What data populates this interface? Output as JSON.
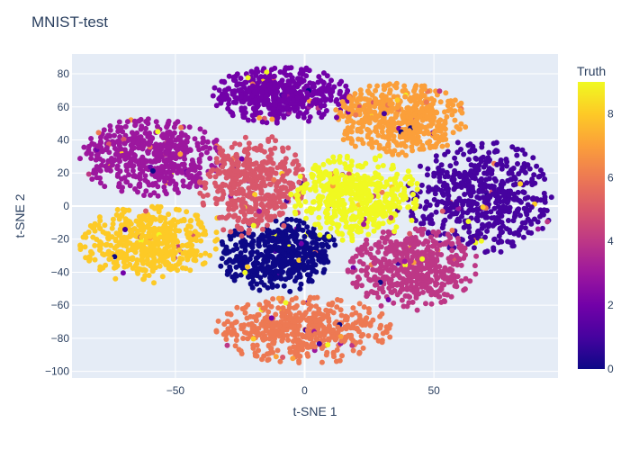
{
  "chart_data": {
    "type": "scatter",
    "title": "MNIST-test",
    "xlabel": "t-SNE 1",
    "ylabel": "t-SNE 2",
    "xlim": [
      -90,
      98
    ],
    "ylim": [
      -104,
      92
    ],
    "grid": true,
    "x_ticks": [
      -50,
      0,
      50
    ],
    "x_tick_labels": [
      "−50",
      "0",
      "50"
    ],
    "y_ticks": [
      -100,
      -80,
      -60,
      -40,
      -20,
      0,
      20,
      40,
      60,
      80
    ],
    "y_tick_labels": [
      "−100",
      "−80",
      "−60",
      "−40",
      "−20",
      "0",
      "20",
      "40",
      "60",
      "80"
    ],
    "colorbar": {
      "title": "Truth",
      "range": [
        0,
        9
      ],
      "ticks": [
        0,
        2,
        4,
        6,
        8
      ],
      "tick_labels": [
        "0",
        "2",
        "4",
        "6",
        "8"
      ],
      "colorscale": [
        "#0d0887",
        "#46039f",
        "#7201a8",
        "#9c179e",
        "#bd3786",
        "#d8576b",
        "#ed7953",
        "#fb9f3a",
        "#fdca26",
        "#f0f921"
      ]
    },
    "clusters": [
      {
        "truth": 0,
        "cx": -10,
        "cy": -30,
        "rx": 15,
        "ry": 14,
        "n": 520
      },
      {
        "truth": 1,
        "cx": 68,
        "cy": 5,
        "rx": 18,
        "ry": 22,
        "n": 560
      },
      {
        "truth": 2,
        "cx": -9,
        "cy": 67,
        "rx": 17,
        "ry": 11,
        "n": 500
      },
      {
        "truth": 3,
        "cx": -59,
        "cy": 30,
        "rx": 18,
        "ry": 15,
        "n": 500
      },
      {
        "truth": 4,
        "cx": 42,
        "cy": -38,
        "rx": 16,
        "ry": 16,
        "n": 490
      },
      {
        "truth": 5,
        "cx": -20,
        "cy": 12,
        "rx": 13,
        "ry": 20,
        "n": 440
      },
      {
        "truth": 6,
        "cx": 0,
        "cy": -75,
        "rx": 22,
        "ry": 13,
        "n": 480
      },
      {
        "truth": 7,
        "cx": 37,
        "cy": 53,
        "rx": 17,
        "ry": 14,
        "n": 510
      },
      {
        "truth": 8,
        "cx": -60,
        "cy": -23,
        "rx": 17,
        "ry": 15,
        "n": 490
      },
      {
        "truth": 9,
        "cx": 20,
        "cy": 5,
        "rx": 16,
        "ry": 17,
        "n": 500
      }
    ]
  }
}
